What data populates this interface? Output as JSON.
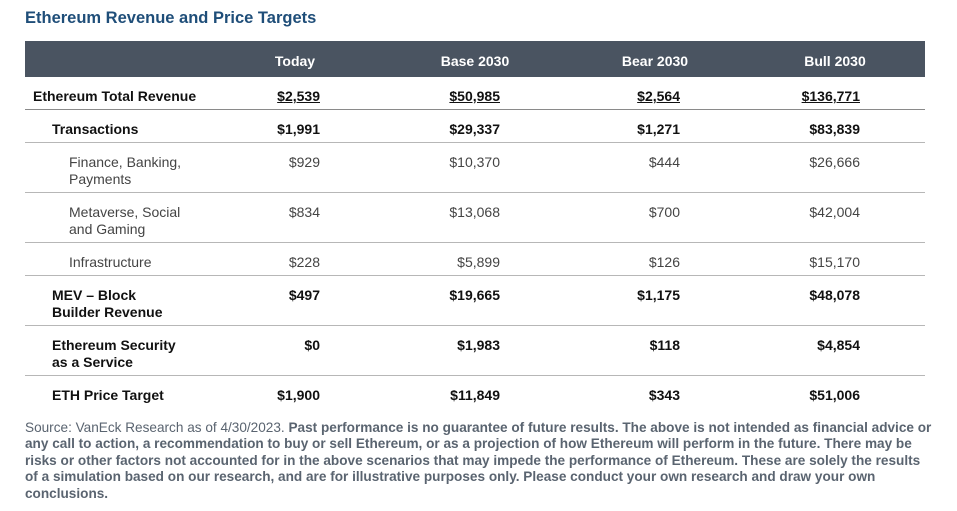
{
  "title": "Ethereum Revenue and Price Targets",
  "columns": [
    "Today",
    "Base 2030",
    "Bear 2030",
    "Bull 2030"
  ],
  "rows": [
    {
      "label": "Ethereum Total Revenue",
      "values": [
        "$2,539",
        "$50,985",
        "$2,564",
        "$136,771"
      ],
      "level": 0,
      "weight": "bold",
      "underline": true
    },
    {
      "label": "Transactions",
      "values": [
        "$1,991",
        "$29,337",
        "$1,271",
        "$83,839"
      ],
      "level": 1,
      "weight": "bold",
      "underline": false
    },
    {
      "label": "Finance, Banking,\nPayments",
      "values": [
        "$929",
        "$10,370",
        "$444",
        "$26,666"
      ],
      "level": 2,
      "weight": "normal",
      "underline": false
    },
    {
      "label": "Metaverse, Social\nand Gaming",
      "values": [
        "$834",
        "$13,068",
        "$700",
        "$42,004"
      ],
      "level": 2,
      "weight": "normal",
      "underline": false
    },
    {
      "label": "Infrastructure",
      "values": [
        "$228",
        "$5,899",
        "$126",
        "$15,170"
      ],
      "level": 2,
      "weight": "normal",
      "underline": false
    },
    {
      "label": "MEV – Block\nBuilder Revenue",
      "values": [
        "$497",
        "$19,665",
        "$1,175",
        "$48,078"
      ],
      "level": 1,
      "weight": "bold",
      "underline": false
    },
    {
      "label": "Ethereum Security\nas a Service",
      "values": [
        "$0",
        "$1,983",
        "$118",
        "$4,854"
      ],
      "level": 1,
      "weight": "bold",
      "underline": false
    },
    {
      "label": "ETH Price Target",
      "values": [
        "$1,900",
        "$11,849",
        "$343",
        "$51,006"
      ],
      "level": 1,
      "weight": "bold",
      "underline": false
    }
  ],
  "source_lead": "Source: VanEck Research as of 4/30/2023. ",
  "source_body": "Past performance is no guarantee of future results. The above is not intended as financial advice or any call to action, a recommendation to buy or sell Ethereum, or as a projection of how Ethereum will perform in the future. There may be risks or other factors not accounted for in the above scenarios that may impede the performance of Ethereum. These are solely the results of a simulation based on our research, and are for illustrative purposes only. Please conduct your own research and draw your own conclusions."
}
